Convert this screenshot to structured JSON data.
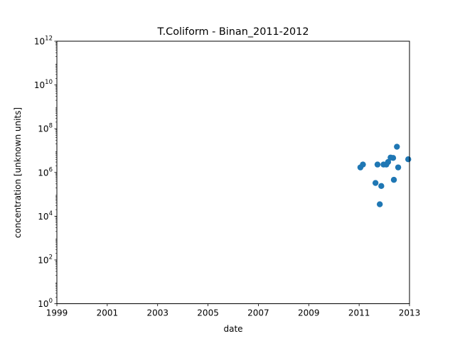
{
  "chart_data": {
    "type": "scatter",
    "title": "T.Coliform - Binan_2011-2012",
    "xlabel": "date",
    "ylabel": "concentration [unknown units]",
    "y_scale": "log",
    "xlim": [
      1999,
      2013
    ],
    "ylim": [
      1,
      1000000000000
    ],
    "x_ticks": [
      {
        "label": "1999",
        "value": 1999
      },
      {
        "label": "2001",
        "value": 2001
      },
      {
        "label": "2003",
        "value": 2003
      },
      {
        "label": "2005",
        "value": 2005
      },
      {
        "label": "2007",
        "value": 2007
      },
      {
        "label": "2009",
        "value": 2009
      },
      {
        "label": "2011",
        "value": 2011
      },
      {
        "label": "2013",
        "value": 2013
      }
    ],
    "y_ticks": [
      {
        "base": "10",
        "exp": "0",
        "value": 1
      },
      {
        "base": "10",
        "exp": "2",
        "value": 100
      },
      {
        "base": "10",
        "exp": "4",
        "value": 10000
      },
      {
        "base": "10",
        "exp": "6",
        "value": 1000000
      },
      {
        "base": "10",
        "exp": "8",
        "value": 100000000
      },
      {
        "base": "10",
        "exp": "10",
        "value": 10000000000
      },
      {
        "base": "10",
        "exp": "12",
        "value": 1000000000000
      }
    ],
    "grid": false,
    "marker_color": "#1f77b4",
    "series": [
      {
        "points": [
          {
            "x": 2011.05,
            "y": 1700000
          },
          {
            "x": 2011.15,
            "y": 2300000
          },
          {
            "x": 2011.65,
            "y": 330000
          },
          {
            "x": 2011.73,
            "y": 2300000
          },
          {
            "x": 2011.82,
            "y": 35000
          },
          {
            "x": 2011.88,
            "y": 240000
          },
          {
            "x": 2011.97,
            "y": 2300000
          },
          {
            "x": 2012.08,
            "y": 2300000
          },
          {
            "x": 2012.15,
            "y": 3000000
          },
          {
            "x": 2012.25,
            "y": 4800000
          },
          {
            "x": 2012.35,
            "y": 4600000
          },
          {
            "x": 2012.38,
            "y": 460000
          },
          {
            "x": 2012.5,
            "y": 15000000
          },
          {
            "x": 2012.55,
            "y": 1700000
          },
          {
            "x": 2012.95,
            "y": 4000000
          }
        ]
      }
    ]
  }
}
